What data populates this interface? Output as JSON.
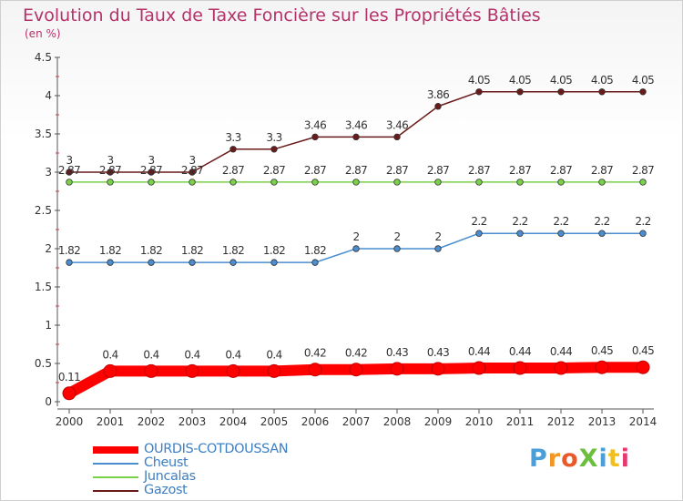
{
  "title": "Evolution du Taux de Taxe Foncière sur les Propriétés Bâties",
  "subtitle": "(en %)",
  "logo": {
    "text": "ProXiti",
    "colors": [
      "#4a9fd8",
      "#f29624",
      "#e85a2a",
      "#6cbf3e",
      "#4a9fd8",
      "#f2c01e",
      "#e63a6e"
    ]
  },
  "chart_data": {
    "type": "line",
    "x": [
      "2000",
      "2001",
      "2002",
      "2003",
      "2004",
      "2005",
      "2006",
      "2007",
      "2008",
      "2009",
      "2010",
      "2011",
      "2012",
      "2013",
      "2014"
    ],
    "ylim": [
      0,
      4.5
    ],
    "yticks": [
      "0",
      "0.5",
      "1",
      "1.5",
      "2",
      "2.5",
      "3",
      "3.5",
      "4",
      "4.5"
    ],
    "grid": false,
    "legend_position": "bottom-left",
    "series": [
      {
        "name": "OURDIS-COTDOUSSAN",
        "color": "#ff0000",
        "values": [
          0.11,
          0.4,
          0.4,
          0.4,
          0.4,
          0.4,
          0.42,
          0.42,
          0.43,
          0.43,
          0.44,
          0.44,
          0.44,
          0.45,
          0.45
        ],
        "labels": [
          "0.11",
          "0.4",
          "0.4",
          "0.4",
          "0.4",
          "0.4",
          "0.42",
          "0.42",
          "0.43",
          "0.43",
          "0.44",
          "0.44",
          "0.44",
          "0.45",
          "0.45"
        ]
      },
      {
        "name": "Cheust",
        "color": "#4a8ed0",
        "values": [
          1.82,
          1.82,
          1.82,
          1.82,
          1.82,
          1.82,
          1.82,
          2,
          2,
          2,
          2.2,
          2.2,
          2.2,
          2.2,
          2.2
        ],
        "labels": [
          "1.82",
          "1.82",
          "1.82",
          "1.82",
          "1.82",
          "1.82",
          "1.82",
          "2",
          "2",
          "2",
          "2.2",
          "2.2",
          "2.2",
          "2.2",
          "2.2"
        ]
      },
      {
        "name": "Juncalas",
        "color": "#7ad14a",
        "values": [
          2.87,
          2.87,
          2.87,
          2.87,
          2.87,
          2.87,
          2.87,
          2.87,
          2.87,
          2.87,
          2.87,
          2.87,
          2.87,
          2.87,
          2.87
        ],
        "labels": [
          "2.87",
          "2.87",
          "2.87",
          "2.87",
          "2.87",
          "2.87",
          "2.87",
          "2.87",
          "2.87",
          "2.87",
          "2.87",
          "2.87",
          "2.87",
          "2.87",
          "2.87"
        ]
      },
      {
        "name": "Gazost",
        "color": "#6b1a1a",
        "values": [
          3,
          3,
          3,
          3,
          3.3,
          3.3,
          3.46,
          3.46,
          3.46,
          3.86,
          4.05,
          4.05,
          4.05,
          4.05,
          4.05
        ],
        "labels": [
          "3",
          "3",
          "3",
          "3",
          "3.3",
          "3.3",
          "3.46",
          "3.46",
          "3.46",
          "3.86",
          "4.05",
          "4.05",
          "4.05",
          "4.05",
          "4.05"
        ]
      }
    ]
  }
}
